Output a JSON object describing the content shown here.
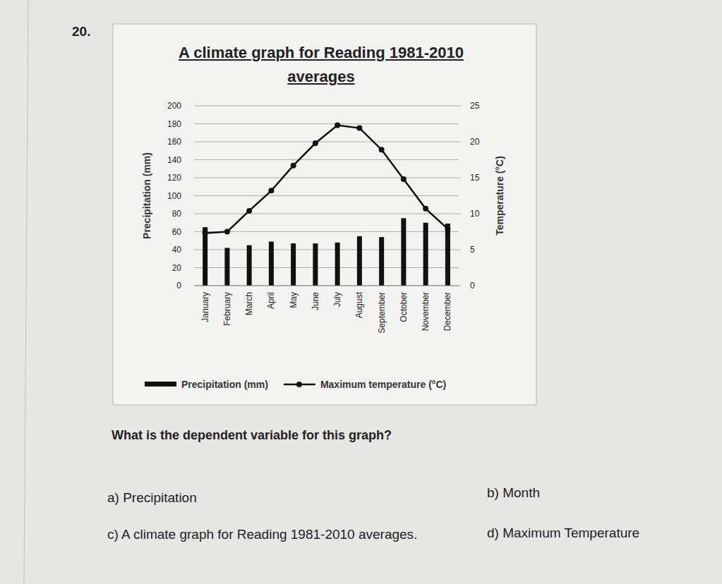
{
  "question": {
    "number": "20.",
    "text": "What is the dependent variable for this graph?",
    "options": [
      {
        "letter": "a)",
        "text": "Precipitation"
      },
      {
        "letter": "b)",
        "text": "Month"
      },
      {
        "letter": "c)",
        "text": "A climate graph for Reading 1981-2010 averages."
      },
      {
        "letter": "d)",
        "text": "Maximum Temperature"
      }
    ]
  },
  "chart_data": {
    "type": "bar",
    "title": "A climate graph for Reading 1981-2010 averages",
    "categories": [
      "January",
      "February",
      "March",
      "April",
      "May",
      "June",
      "July",
      "August",
      "September",
      "October",
      "November",
      "December"
    ],
    "y_label": "Precipitation (mm)",
    "y2_label": "Temperature (°C)",
    "ylim": [
      0,
      200
    ],
    "yticks": [
      0,
      20,
      40,
      60,
      80,
      100,
      120,
      140,
      160,
      180,
      200
    ],
    "y2lim": [
      0,
      25
    ],
    "y2ticks": [
      0,
      5,
      10,
      15,
      20,
      25
    ],
    "grid": true,
    "legend": "bottom",
    "series": [
      {
        "name": "Precipitation (mm)",
        "type": "bar",
        "color": "#111111",
        "values": [
          65,
          42,
          45,
          49,
          47,
          47,
          48,
          55,
          54,
          75,
          70,
          69
        ]
      },
      {
        "name": "Maximum temperature (°C)",
        "type": "line",
        "axis": "y2",
        "color": "#111111",
        "marker": "circle",
        "line_style": "solid",
        "values": [
          7.3,
          7.5,
          10.4,
          13.2,
          16.7,
          19.8,
          22.3,
          21.9,
          18.9,
          14.8,
          10.7,
          7.9
        ]
      }
    ]
  }
}
